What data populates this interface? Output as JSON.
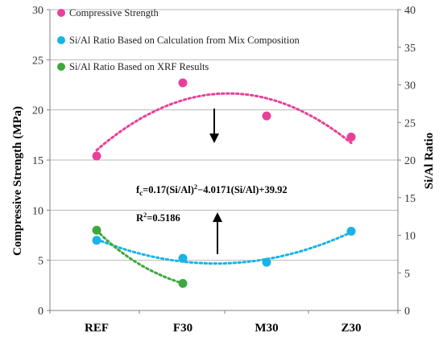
{
  "chart_data": {
    "type": "scatter",
    "categories": [
      "REF",
      "F30",
      "M30",
      "Z30"
    ],
    "left_axis": {
      "label": "Compressive Strength (MPa)",
      "ylim": [
        0,
        30
      ],
      "ticks": [
        0,
        5,
        10,
        15,
        20,
        25,
        30
      ]
    },
    "right_axis": {
      "label": "Si/Al Ratio",
      "ylim": [
        0,
        40
      ],
      "ticks": [
        0,
        5,
        10,
        15,
        20,
        25,
        30,
        35,
        40
      ]
    },
    "grid": true,
    "legend_position": "top-left",
    "series": [
      {
        "name": "Compressive Strength",
        "axis": "left",
        "color": "#e8409a",
        "values": [
          15.4,
          22.7,
          19.4,
          17.3
        ]
      },
      {
        "name": "Si/Al Ratio Based on Calculation from Mix Composition",
        "axis": "left",
        "color": "#19b3e6",
        "values": [
          7.0,
          5.2,
          4.8,
          7.9
        ]
      },
      {
        "name": "Si/Al Ratio Based on XRF Results",
        "axis": "left",
        "color": "#3ea83e",
        "values": [
          8.0,
          2.7,
          null,
          null
        ]
      }
    ],
    "annotations": {
      "equation_main": "f",
      "equation_sub": "c",
      "equation_part1": "=0.17(Si/Al)",
      "equation_sup": "2",
      "equation_part2": "−4.0171(Si/Al)+39.92",
      "r2_prefix": "R",
      "r2_sup": "2",
      "r2_value": "=0.5186"
    }
  }
}
